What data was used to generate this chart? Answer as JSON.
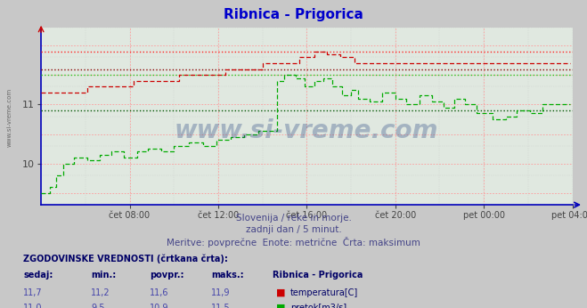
{
  "title": "Ribnica - Prigorica",
  "title_color": "#0000cc",
  "bg_color": "#c8c8c8",
  "plot_bg_color": "#e0e8e0",
  "grid_color_major": "#ff9999",
  "grid_color_minor": "#dddddd",
  "axis_color": "#0000bb",
  "watermark": "www.si-vreme.com",
  "subtitle1": "Slovenija / reke in morje.",
  "subtitle2": "zadnji dan / 5 minut.",
  "subtitle3": "Meritve: povprečne  Enote: metrične  Črta: maksimum",
  "xticklabels": [
    "čet 08:00",
    "čet 12:00",
    "čet 16:00",
    "čet 20:00",
    "pet 00:00",
    "pet 04:00"
  ],
  "ymin": 9.3,
  "ymax": 12.3,
  "xmin": 0,
  "xmax": 288,
  "temp_color": "#cc0000",
  "flow_color": "#00aa00",
  "temp_avg_line": 11.6,
  "flow_avg_line": 10.9,
  "temp_max_line": 11.9,
  "flow_max_line": 11.5,
  "legend_title": "Ribnica - Prigorica",
  "stat_headers": [
    "sedaj:",
    "min.:",
    "povpr.:",
    "maks.:"
  ],
  "temp_stats": [
    11.7,
    11.2,
    11.6,
    11.9
  ],
  "flow_stats": [
    11.0,
    9.5,
    10.9,
    11.5
  ],
  "temp_label": "temperatura[C]",
  "flow_label": "pretok[m3/s]",
  "n_points": 288
}
